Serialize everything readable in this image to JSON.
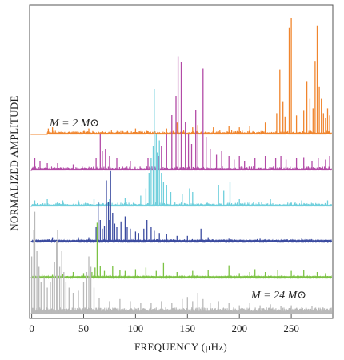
{
  "chart_data": {
    "type": "line",
    "xlabel": "FREQUENCY (μHz)",
    "ylabel": "NORMALIZED AMPLITUDE",
    "xlim": [
      -2,
      290
    ],
    "xticks": [
      0,
      50,
      100,
      150,
      200,
      250
    ],
    "xtick_labels": [
      "0",
      "50",
      "100",
      "150",
      "200",
      "250"
    ],
    "annotations": [
      {
        "text": "M = 2 M⊙",
        "near_series": "2 Msun"
      },
      {
        "text": "M = 24 M⊙",
        "near_series": "24 Msun"
      }
    ],
    "series": [
      {
        "key": "s1",
        "color": "#f0852d",
        "onset": 15,
        "peaks": [
          [
            16,
            0.05
          ],
          [
            20,
            0.06
          ],
          [
            55,
            0.05
          ],
          [
            100,
            0.05
          ],
          [
            130,
            0.05
          ],
          [
            140,
            0.1
          ],
          [
            155,
            0.06
          ],
          [
            160,
            0.08
          ],
          [
            175,
            0.06
          ],
          [
            190,
            0.07
          ],
          [
            200,
            0.06
          ],
          [
            210,
            0.07
          ],
          [
            225,
            0.1
          ],
          [
            236,
            0.18
          ],
          [
            239,
            0.55
          ],
          [
            242,
            0.28
          ],
          [
            244,
            0.15
          ],
          [
            248,
            0.9
          ],
          [
            250,
            0.98
          ],
          [
            255,
            0.16
          ],
          [
            262,
            0.2
          ],
          [
            265,
            0.45
          ],
          [
            268,
            0.3
          ],
          [
            271,
            0.22
          ],
          [
            273,
            0.62
          ],
          [
            275,
            0.92
          ],
          [
            277,
            0.4
          ],
          [
            279,
            0.3
          ],
          [
            281,
            0.18
          ],
          [
            283,
            0.14
          ],
          [
            285,
            0.22
          ],
          [
            287,
            0.16
          ]
        ]
      },
      {
        "key": "s2",
        "color": "#b24aa6",
        "onset": 0,
        "peaks": [
          [
            3,
            0.1
          ],
          [
            8,
            0.08
          ],
          [
            15,
            0.06
          ],
          [
            25,
            0.06
          ],
          [
            40,
            0.05
          ],
          [
            62,
            0.1
          ],
          [
            66,
            0.3
          ],
          [
            68,
            0.16
          ],
          [
            71,
            0.18
          ],
          [
            75,
            0.12
          ],
          [
            82,
            0.1
          ],
          [
            95,
            0.08
          ],
          [
            112,
            0.1
          ],
          [
            122,
            0.12
          ],
          [
            125,
            0.2
          ],
          [
            130,
            0.3
          ],
          [
            135,
            0.46
          ],
          [
            139,
            0.62
          ],
          [
            141,
            0.95
          ],
          [
            144,
            0.9
          ],
          [
            148,
            0.4
          ],
          [
            151,
            0.3
          ],
          [
            154,
            0.22
          ],
          [
            158,
            0.5
          ],
          [
            160,
            0.32
          ],
          [
            165,
            0.85
          ],
          [
            168,
            0.28
          ],
          [
            172,
            0.18
          ],
          [
            178,
            0.13
          ],
          [
            183,
            0.16
          ],
          [
            190,
            0.12
          ],
          [
            195,
            0.09
          ],
          [
            200,
            0.12
          ],
          [
            205,
            0.08
          ],
          [
            215,
            0.1
          ],
          [
            225,
            0.12
          ],
          [
            235,
            0.1
          ],
          [
            240,
            0.12
          ],
          [
            245,
            0.09
          ],
          [
            255,
            0.1
          ],
          [
            262,
            0.11
          ],
          [
            270,
            0.08
          ],
          [
            276,
            0.1
          ],
          [
            283,
            0.09
          ],
          [
            287,
            0.12
          ]
        ]
      },
      {
        "key": "s3",
        "color": "#6fcfdc",
        "onset": 0,
        "peaks": [
          [
            3,
            0.05
          ],
          [
            15,
            0.06
          ],
          [
            30,
            0.05
          ],
          [
            45,
            0.05
          ],
          [
            60,
            0.06
          ],
          [
            75,
            0.06
          ],
          [
            90,
            0.07
          ],
          [
            105,
            0.09
          ],
          [
            110,
            0.15
          ],
          [
            113,
            0.28
          ],
          [
            115,
            0.4
          ],
          [
            117,
            0.5
          ],
          [
            118,
            0.98
          ],
          [
            120,
            0.6
          ],
          [
            121,
            0.45
          ],
          [
            123,
            0.55
          ],
          [
            125,
            0.28
          ],
          [
            127,
            0.2
          ],
          [
            130,
            0.18
          ],
          [
            134,
            0.12
          ],
          [
            145,
            0.1
          ],
          [
            152,
            0.15
          ],
          [
            155,
            0.12
          ],
          [
            180,
            0.18
          ],
          [
            185,
            0.13
          ],
          [
            191,
            0.2
          ],
          [
            200,
            0.06
          ],
          [
            230,
            0.06
          ],
          [
            260,
            0.05
          ],
          [
            285,
            0.05
          ]
        ]
      },
      {
        "key": "s4",
        "color": "#3b4ba0",
        "onset": 0,
        "peaks": [
          [
            2,
            0.04
          ],
          [
            20,
            0.06
          ],
          [
            45,
            0.06
          ],
          [
            55,
            0.06
          ],
          [
            62,
            0.2
          ],
          [
            64,
            0.55
          ],
          [
            66,
            0.3
          ],
          [
            68,
            0.18
          ],
          [
            70,
            0.22
          ],
          [
            72,
            0.85
          ],
          [
            74,
            0.55
          ],
          [
            75,
            0.3
          ],
          [
            76,
            0.98
          ],
          [
            78,
            0.4
          ],
          [
            80,
            0.25
          ],
          [
            82,
            0.2
          ],
          [
            86,
            0.28
          ],
          [
            90,
            0.35
          ],
          [
            92,
            0.2
          ],
          [
            95,
            0.18
          ],
          [
            100,
            0.14
          ],
          [
            103,
            0.12
          ],
          [
            108,
            0.18
          ],
          [
            111,
            0.3
          ],
          [
            115,
            0.2
          ],
          [
            118,
            0.15
          ],
          [
            123,
            0.12
          ],
          [
            130,
            0.1
          ],
          [
            140,
            0.08
          ],
          [
            150,
            0.08
          ],
          [
            163,
            0.18
          ],
          [
            170,
            0.06
          ],
          [
            190,
            0.04
          ],
          [
            220,
            0.04
          ],
          [
            260,
            0.04
          ]
        ]
      },
      {
        "key": "s5",
        "color": "#7cc244",
        "onset": 0,
        "peaks": [
          [
            2,
            0.06
          ],
          [
            10,
            0.05
          ],
          [
            20,
            0.05
          ],
          [
            30,
            0.06
          ],
          [
            40,
            0.1
          ],
          [
            50,
            0.08
          ],
          [
            58,
            0.1
          ],
          [
            61,
            0.18
          ],
          [
            63,
            0.98
          ],
          [
            66,
            0.2
          ],
          [
            70,
            0.12
          ],
          [
            78,
            0.2
          ],
          [
            85,
            0.14
          ],
          [
            90,
            0.12
          ],
          [
            100,
            0.15
          ],
          [
            110,
            0.18
          ],
          [
            120,
            0.12
          ],
          [
            127,
            0.26
          ],
          [
            140,
            0.1
          ],
          [
            155,
            0.12
          ],
          [
            170,
            0.14
          ],
          [
            190,
            0.22
          ],
          [
            200,
            0.08
          ],
          [
            210,
            0.1
          ],
          [
            215,
            0.15
          ],
          [
            225,
            0.1
          ],
          [
            237,
            0.14
          ],
          [
            250,
            0.12
          ],
          [
            262,
            0.13
          ],
          [
            275,
            0.1
          ],
          [
            283,
            0.08
          ]
        ]
      },
      {
        "key": "s6",
        "color": "#b9b9b9",
        "onset": 0,
        "peaks": [
          [
            0,
            0.55
          ],
          [
            2,
            0.8
          ],
          [
            3,
            0.98
          ],
          [
            5,
            0.6
          ],
          [
            7,
            0.45
          ],
          [
            9,
            0.3
          ],
          [
            12,
            0.35
          ],
          [
            15,
            0.25
          ],
          [
            18,
            0.3
          ],
          [
            20,
            0.35
          ],
          [
            22,
            0.5
          ],
          [
            24,
            0.7
          ],
          [
            25,
            0.8
          ],
          [
            27,
            0.45
          ],
          [
            29,
            0.6
          ],
          [
            31,
            0.4
          ],
          [
            33,
            0.3
          ],
          [
            36,
            0.25
          ],
          [
            40,
            0.2
          ],
          [
            45,
            0.22
          ],
          [
            50,
            0.3
          ],
          [
            53,
            0.4
          ],
          [
            55,
            0.55
          ],
          [
            57,
            0.45
          ],
          [
            60,
            0.25
          ],
          [
            65,
            0.15
          ],
          [
            75,
            0.12
          ],
          [
            85,
            0.14
          ],
          [
            95,
            0.12
          ],
          [
            105,
            0.1
          ],
          [
            115,
            0.1
          ],
          [
            125,
            0.12
          ],
          [
            135,
            0.1
          ],
          [
            145,
            0.14
          ],
          [
            150,
            0.16
          ],
          [
            155,
            0.12
          ],
          [
            160,
            0.2
          ],
          [
            165,
            0.14
          ],
          [
            172,
            0.1
          ],
          [
            180,
            0.12
          ],
          [
            190,
            0.1
          ],
          [
            200,
            0.08
          ],
          [
            210,
            0.1
          ],
          [
            220,
            0.08
          ],
          [
            230,
            0.09
          ],
          [
            240,
            0.07
          ],
          [
            250,
            0.08
          ],
          [
            260,
            0.06
          ],
          [
            270,
            0.07
          ],
          [
            280,
            0.06
          ],
          [
            287,
            0.05
          ]
        ]
      }
    ]
  }
}
